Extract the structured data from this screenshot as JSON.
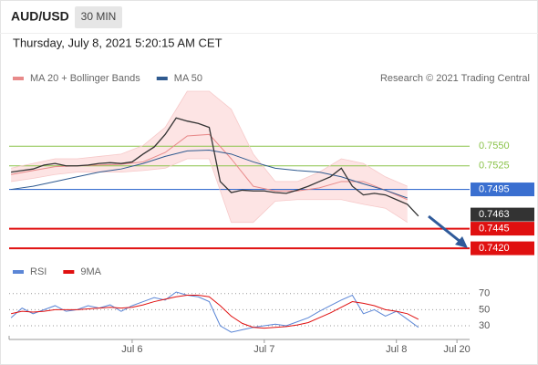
{
  "header": {
    "symbol": "AUD/USD",
    "interval": "30 MIN",
    "timestamp": "Thursday, July 8, 2021 5:20:15 AM CET"
  },
  "chart_data": [
    {
      "type": "line",
      "credit": "Research © 2021 Trading Central",
      "xlim": [
        1.65,
        85.3
      ],
      "ylim": [
        0.7405,
        0.762
      ],
      "series": [
        {
          "role": "band_upper",
          "color": "#f6c9c9",
          "x": [
            2,
            6,
            10,
            14,
            18,
            22,
            26,
            30,
            34,
            38,
            42,
            46,
            50,
            54,
            58,
            62,
            66,
            70,
            74
          ],
          "values": [
            0.7522,
            0.7528,
            0.7534,
            0.7534,
            0.7537,
            0.754,
            0.7551,
            0.7574,
            0.762,
            0.762,
            0.7597,
            0.754,
            0.7505,
            0.7505,
            0.7517,
            0.7534,
            0.7528,
            0.7511,
            0.7499
          ]
        },
        {
          "role": "band_lower",
          "color": "#f6c9c9",
          "x": [
            2,
            6,
            10,
            14,
            18,
            22,
            26,
            30,
            34,
            38,
            42,
            46,
            50,
            54,
            58,
            62,
            66,
            70,
            74
          ],
          "values": [
            0.7505,
            0.7509,
            0.7514,
            0.7517,
            0.7517,
            0.7517,
            0.7519,
            0.7522,
            0.7534,
            0.7534,
            0.7453,
            0.7453,
            0.748,
            0.7482,
            0.7482,
            0.7482,
            0.7476,
            0.7471,
            0.7453
          ]
        },
        {
          "name": "MA 20 + Bollinger Bands",
          "color": "#e88a8a",
          "x": [
            2,
            6,
            10,
            14,
            18,
            22,
            26,
            30,
            34,
            38,
            42,
            46,
            50,
            54,
            58,
            62,
            66,
            70,
            74
          ],
          "values": [
            0.7514,
            0.7519,
            0.7524,
            0.7525,
            0.7526,
            0.7527,
            0.753,
            0.7542,
            0.7563,
            0.7565,
            0.7534,
            0.7499,
            0.7493,
            0.7493,
            0.7497,
            0.7505,
            0.7505,
            0.7494,
            0.7482
          ]
        },
        {
          "name": "MA 50",
          "color": "#2f5a8f",
          "x": [
            2,
            6,
            10,
            14,
            18,
            22,
            26,
            30,
            34,
            38,
            42,
            46,
            50,
            54,
            58,
            62,
            66,
            70,
            74
          ],
          "values": [
            0.7495,
            0.7499,
            0.7505,
            0.7511,
            0.7517,
            0.7521,
            0.7528,
            0.7537,
            0.7544,
            0.7545,
            0.754,
            0.753,
            0.7522,
            0.7519,
            0.7517,
            0.7511,
            0.7502,
            0.7494,
            0.7484
          ]
        },
        {
          "color": "#333333",
          "x": [
            2,
            4,
            6,
            8,
            10,
            12,
            14,
            16,
            18,
            20,
            22,
            24,
            26,
            28,
            30,
            32,
            34,
            36,
            38,
            40,
            42,
            44,
            46,
            48,
            50,
            52,
            54,
            56,
            58,
            60,
            62,
            64,
            66,
            68,
            70,
            72,
            74,
            76
          ],
          "values": [
            0.7517,
            0.7519,
            0.7521,
            0.7526,
            0.7528,
            0.7525,
            0.7525,
            0.7526,
            0.7528,
            0.7529,
            0.7528,
            0.753,
            0.754,
            0.7549,
            0.7565,
            0.7586,
            0.7582,
            0.7579,
            0.7574,
            0.7505,
            0.7491,
            0.7494,
            0.7493,
            0.7493,
            0.7491,
            0.749,
            0.7494,
            0.7499,
            0.7505,
            0.7511,
            0.7522,
            0.7499,
            0.7488,
            0.749,
            0.7488,
            0.7482,
            0.7476,
            0.7461
          ]
        }
      ],
      "levels": [
        {
          "value": 0.755,
          "label": "0.7550",
          "color": "#8bc34a",
          "style": "text",
          "line_width": 1
        },
        {
          "value": 0.7525,
          "label": "0.7525",
          "color": "#8bc34a",
          "style": "text",
          "line_width": 1
        },
        {
          "value": 0.7495,
          "label": "0.7495",
          "color": "#3a6fd0",
          "style": "box",
          "line_width": 1.2
        },
        {
          "value": 0.7463,
          "label": "0.7463",
          "color": "#333333",
          "style": "box",
          "line_width": 0
        },
        {
          "value": 0.7445,
          "label": "0.7445",
          "color": "#e01010",
          "style": "box",
          "line_width": 2
        },
        {
          "value": 0.742,
          "label": "0.7420",
          "color": "#e01010",
          "style": "box",
          "line_width": 2
        }
      ]
    },
    {
      "type": "line",
      "xlim": [
        1.65,
        85.3
      ],
      "ylim": [
        13,
        89
      ],
      "yticks": [
        30,
        50,
        70
      ],
      "grid": true,
      "xticks": [
        {
          "value": 24,
          "label": "Jul 6"
        },
        {
          "value": 48,
          "label": "Jul 7"
        },
        {
          "value": 72,
          "label": "Jul 8"
        },
        {
          "value": 83,
          "label": "Jul 20"
        }
      ],
      "series": [
        {
          "name": "RSI",
          "color": "#5b86d6",
          "x": [
            2,
            4,
            6,
            8,
            10,
            12,
            14,
            16,
            18,
            20,
            22,
            24,
            26,
            28,
            30,
            32,
            34,
            36,
            38,
            40,
            42,
            44,
            46,
            48,
            50,
            52,
            54,
            56,
            58,
            60,
            62,
            64,
            66,
            68,
            70,
            72,
            74,
            76
          ],
          "values": [
            40,
            52,
            45,
            50,
            55,
            48,
            50,
            55,
            52,
            56,
            48,
            55,
            60,
            65,
            62,
            72,
            68,
            66,
            60,
            30,
            22,
            25,
            28,
            30,
            32,
            30,
            35,
            40,
            48,
            55,
            62,
            68,
            45,
            50,
            42,
            48,
            38,
            28
          ]
        },
        {
          "name": "9MA",
          "color": "#e01010",
          "x": [
            2,
            4,
            6,
            8,
            10,
            12,
            14,
            16,
            18,
            20,
            22,
            24,
            26,
            28,
            30,
            32,
            34,
            36,
            38,
            40,
            42,
            44,
            46,
            48,
            50,
            52,
            54,
            56,
            58,
            60,
            62,
            64,
            66,
            68,
            70,
            72,
            74,
            76
          ],
          "values": [
            45,
            48,
            47,
            48,
            50,
            50,
            50,
            51,
            52,
            53,
            52,
            53,
            56,
            60,
            63,
            66,
            68,
            68,
            66,
            55,
            42,
            33,
            28,
            27,
            28,
            29,
            31,
            34,
            40,
            46,
            53,
            60,
            58,
            55,
            50,
            48,
            45,
            38
          ]
        }
      ]
    }
  ]
}
